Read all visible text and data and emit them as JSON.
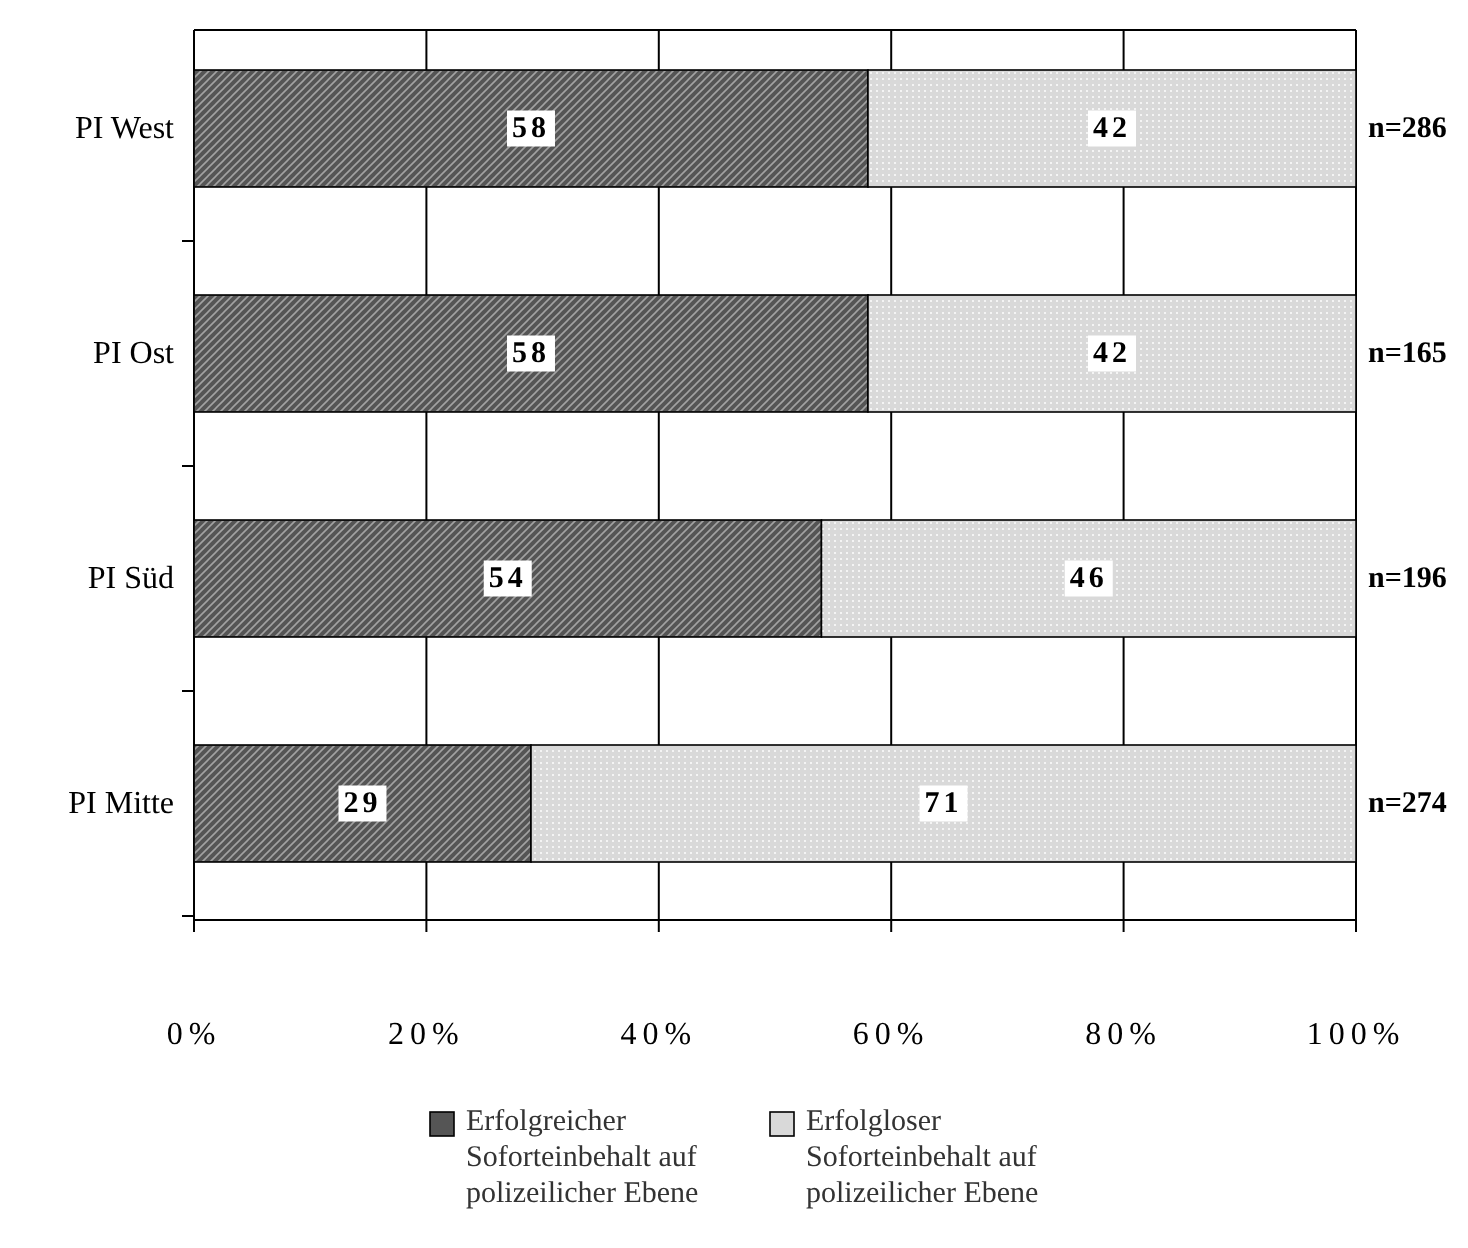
{
  "chart_data": {
    "type": "bar",
    "orientation": "horizontal",
    "stacked": true,
    "categories": [
      "PI West",
      "PI Ost",
      "PI Süd",
      "PI Mitte"
    ],
    "series": [
      {
        "name": "Erfolgreicher Soforteinbehalt auf polizeilicher Ebene",
        "color": "#555555",
        "values": [
          58,
          58,
          54,
          29
        ]
      },
      {
        "name": "Erfolgloser Soforteinbehalt auf polizeilicher Ebene",
        "color": "#d9d9d9",
        "values": [
          42,
          42,
          46,
          71
        ]
      }
    ],
    "xlim": [
      0,
      100
    ],
    "xticks": [
      {
        "value": 0,
        "label": "0%"
      },
      {
        "value": 20,
        "label": "20%"
      },
      {
        "value": 40,
        "label": "40%"
      },
      {
        "value": 60,
        "label": "60%"
      },
      {
        "value": 80,
        "label": "80%"
      },
      {
        "value": 100,
        "label": "100%"
      }
    ],
    "grid": "x",
    "data_labels": true,
    "legend": "bottom",
    "annotations": [
      "n=286",
      "n=165",
      "n=196",
      "n=274"
    ]
  }
}
